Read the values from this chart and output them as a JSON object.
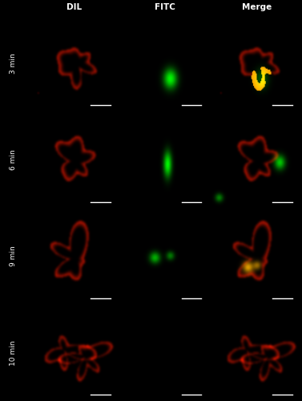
{
  "col_labels": [
    "DIL",
    "FITC",
    "Merge"
  ],
  "row_labels": [
    "3 min",
    "6 min",
    "9 min",
    "10 min"
  ],
  "figure_bg": "#000000",
  "panel_bg": "#000000",
  "label_fontsize": 6.5,
  "col_label_fontsize": 7.5,
  "row_label_color": "#000000",
  "col_label_color": "#ffffff",
  "scale_bar_color": "#ffffff",
  "n_rows": 4,
  "n_cols": 3,
  "dil_color": [
    1.0,
    0.1,
    0.0
  ],
  "fitc_color": [
    0.0,
    1.0,
    0.0
  ],
  "merge_yellow": [
    1.0,
    0.7,
    0.0
  ]
}
